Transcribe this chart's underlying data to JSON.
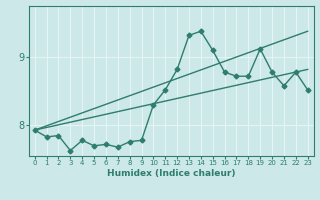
{
  "xlabel": "Humidex (Indice chaleur)",
  "x_ticks": [
    0,
    1,
    2,
    3,
    4,
    5,
    6,
    7,
    8,
    9,
    10,
    11,
    12,
    13,
    14,
    15,
    16,
    17,
    18,
    19,
    20,
    21,
    22,
    23
  ],
  "x_tick_labels": [
    "0",
    "1",
    "2",
    "3",
    "4",
    "5",
    "6",
    "7",
    "8",
    "9",
    "10",
    "11",
    "12",
    "13",
    "14",
    "15",
    "16",
    "17",
    "18",
    "19",
    "20",
    "21",
    "22",
    "23"
  ],
  "y_ticks": [
    8,
    9
  ],
  "ylim": [
    7.55,
    9.75
  ],
  "xlim": [
    -0.5,
    23.5
  ],
  "bg_color": "#cce8e8",
  "line_color": "#2e7d6e",
  "grid_color": "#e8f5f5",
  "line1_x": [
    0,
    1,
    2,
    3,
    4,
    5,
    6,
    7,
    8,
    9,
    10,
    11,
    12,
    13,
    14,
    15,
    16,
    17,
    18,
    19,
    20,
    21,
    22,
    23
  ],
  "line1_y": [
    7.93,
    7.83,
    7.85,
    7.63,
    7.78,
    7.7,
    7.72,
    7.68,
    7.76,
    7.78,
    8.3,
    8.52,
    8.82,
    9.32,
    9.38,
    9.1,
    8.78,
    8.72,
    8.72,
    9.12,
    8.78,
    8.58,
    8.78,
    8.52
  ],
  "line2_x": [
    0,
    23
  ],
  "line2_y": [
    7.93,
    8.82
  ],
  "line3_x": [
    0,
    23
  ],
  "line3_y": [
    7.93,
    9.38
  ],
  "marker_size": 2.5,
  "line_width": 1.0
}
